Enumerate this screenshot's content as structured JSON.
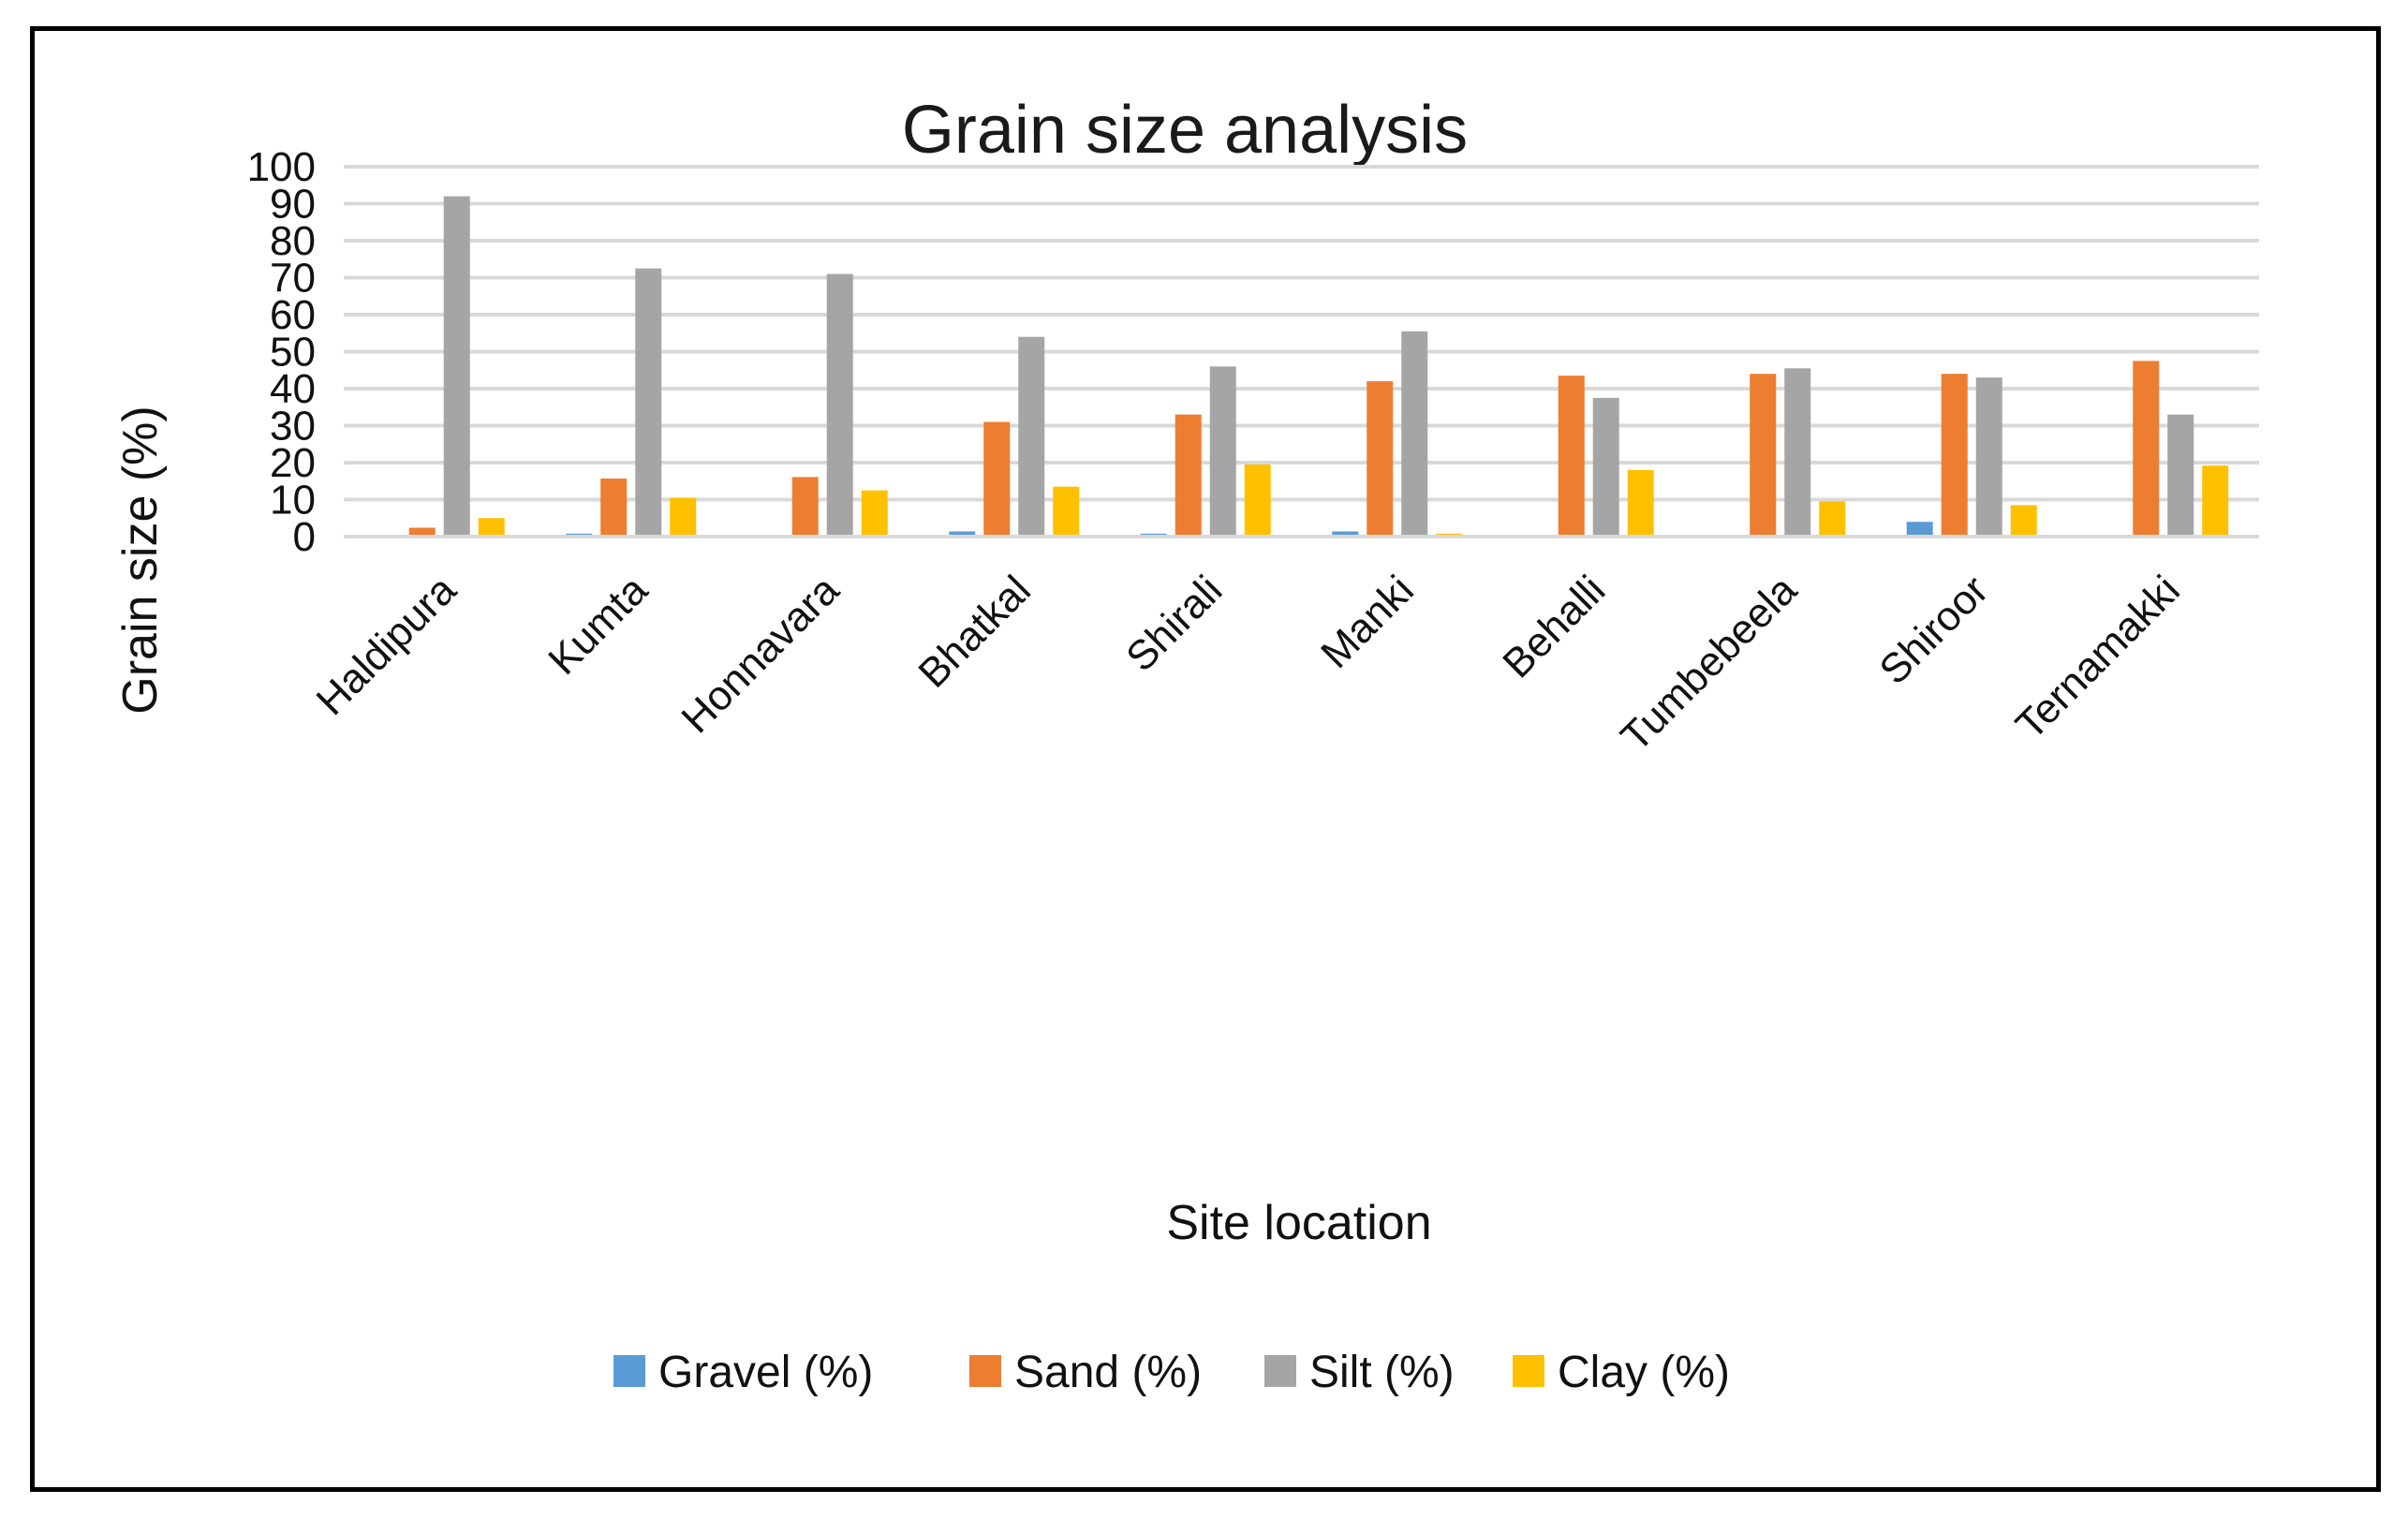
{
  "chart_data": {
    "type": "bar",
    "title": "Grain size analysis",
    "xlabel": "Site location",
    "ylabel": "Grain size (%)",
    "ylim": [
      0,
      100
    ],
    "ytick_step": 10,
    "yticks": [
      "0",
      "10",
      "20",
      "30",
      "40",
      "50",
      "60",
      "70",
      "80",
      "90",
      "100"
    ],
    "grid": true,
    "legend_position": "bottom",
    "categories": [
      "Haldipura",
      "Kumta",
      "Honnavara",
      "Bhatkal",
      "Shirali",
      "Manki",
      "Behalli",
      "Tumbebeela",
      "Shiroor",
      "Ternamakki"
    ],
    "series": [
      {
        "name": "Gravel (%)",
        "color": "#5b9bd5",
        "values": [
          0,
          0.8,
          0,
          1.4,
          0.8,
          1.4,
          0,
          0,
          4.0,
          0
        ]
      },
      {
        "name": "Sand (%)",
        "color": "#ed7d31",
        "values": [
          2.4,
          15.7,
          16.1,
          31.0,
          33.0,
          42.0,
          43.5,
          44.0,
          44.0,
          47.5
        ]
      },
      {
        "name": "Silt (%)",
        "color": "#a5a5a5",
        "values": [
          92.0,
          72.5,
          71.0,
          54.0,
          46.0,
          55.5,
          37.5,
          45.5,
          43.0,
          33.0
        ]
      },
      {
        "name": "Clay (%)",
        "color": "#ffc000",
        "values": [
          5.0,
          10.5,
          12.5,
          13.5,
          19.5,
          0.8,
          18.0,
          9.5,
          8.5,
          19.2
        ]
      }
    ]
  }
}
